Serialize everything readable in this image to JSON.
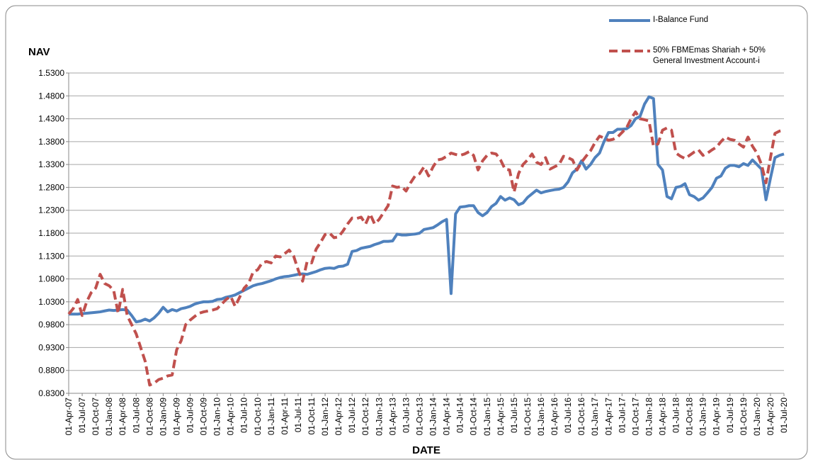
{
  "chart_data": {
    "type": "line",
    "y_label": "NAV",
    "x_label": "DATE",
    "ylim": [
      0.83,
      1.53
    ],
    "yticks": [
      {
        "value": 0.83,
        "label": "0.8300"
      },
      {
        "value": 0.88,
        "label": "0.8800"
      },
      {
        "value": 0.93,
        "label": "0.9300"
      },
      {
        "value": 0.98,
        "label": "0.9800"
      },
      {
        "value": 1.03,
        "label": "1.0300"
      },
      {
        "value": 1.08,
        "label": "1.0800"
      },
      {
        "value": 1.13,
        "label": "1.1300"
      },
      {
        "value": 1.18,
        "label": "1.1800"
      },
      {
        "value": 1.23,
        "label": "1.2300"
      },
      {
        "value": 1.28,
        "label": "1.2800"
      },
      {
        "value": 1.33,
        "label": "1.3300"
      },
      {
        "value": 1.38,
        "label": "1.3800"
      },
      {
        "value": 1.43,
        "label": "1.4300"
      },
      {
        "value": 1.48,
        "label": "1.4800"
      },
      {
        "value": 1.53,
        "label": "1.5300"
      }
    ],
    "grid": true,
    "legend_position": "top-right",
    "categories": [
      "01-Apr-07",
      null,
      null,
      "01-Jul-07",
      null,
      null,
      "01-Oct-07",
      null,
      null,
      "01-Jan-08",
      null,
      null,
      "01-Apr-08",
      null,
      null,
      "01-Jul-08",
      null,
      null,
      "01-Oct-08",
      null,
      null,
      "01-Jan-09",
      null,
      null,
      "01-Apr-09",
      null,
      null,
      "01-Jul-09",
      null,
      null,
      "01-Oct-09",
      null,
      null,
      "01-Jan-10",
      null,
      null,
      "01-Apr-10",
      null,
      null,
      "01-Jul-10",
      null,
      null,
      "01-Oct-10",
      null,
      null,
      "01-Jan-11",
      null,
      null,
      "01-Apr-11",
      null,
      null,
      "01-Jul-11",
      null,
      null,
      "01-Oct-11",
      null,
      null,
      "01-Jan-12",
      null,
      null,
      "01-Apr-12",
      null,
      null,
      "01-Jul-12",
      null,
      null,
      "01-Oct-12",
      null,
      null,
      "01-Jan-13",
      null,
      null,
      "01-Apr-13",
      null,
      null,
      "01-Jul-13",
      null,
      null,
      "01-Oct-13",
      null,
      null,
      "01-Jan-14",
      null,
      null,
      "01-Apr-14",
      null,
      null,
      "01-Jul-14",
      null,
      null,
      "01-Oct-14",
      null,
      null,
      "01-Jan-15",
      null,
      null,
      "01-Apr-15",
      null,
      null,
      "01-Jul-15",
      null,
      null,
      "01-Oct-15",
      null,
      null,
      "01-Jan-16",
      null,
      null,
      "01-Apr-16",
      null,
      null,
      "01-Jul-16",
      null,
      null,
      "01-Oct-16",
      null,
      null,
      "01-Jan-17",
      null,
      null,
      "01-Apr-17",
      null,
      null,
      "01-Jul-17",
      null,
      null,
      "01-Oct-17",
      null,
      null,
      "01-Jan-18",
      null,
      null,
      "01-Apr-18",
      null,
      null,
      "01-Jul-18",
      null,
      null,
      "01-Oct-18",
      null,
      null,
      "01-Jan-19",
      null,
      null,
      "01-Apr-19",
      null,
      null,
      "01-Jul-19",
      null,
      null,
      "01-Oct-19",
      null,
      null,
      "01-Jan-20",
      null,
      null,
      "01-Apr-20",
      null,
      null,
      "01-Jul-20"
    ],
    "series": [
      {
        "name": "I-Balance Fund",
        "color": "#4f81bd",
        "dashed": false,
        "values": [
          1.003,
          1.003,
          1.003,
          1.004,
          1.005,
          1.006,
          1.007,
          1.008,
          1.01,
          1.012,
          1.011,
          1.012,
          1.013,
          1.012,
          1.0,
          0.986,
          0.988,
          0.992,
          0.988,
          0.995,
          1.005,
          1.018,
          1.008,
          1.013,
          1.01,
          1.015,
          1.017,
          1.02,
          1.025,
          1.028,
          1.03,
          1.03,
          1.031,
          1.035,
          1.036,
          1.04,
          1.042,
          1.045,
          1.05,
          1.055,
          1.06,
          1.065,
          1.068,
          1.07,
          1.073,
          1.076,
          1.08,
          1.083,
          1.085,
          1.086,
          1.088,
          1.09,
          1.091,
          1.09,
          1.093,
          1.096,
          1.1,
          1.103,
          1.104,
          1.103,
          1.107,
          1.108,
          1.112,
          1.14,
          1.142,
          1.147,
          1.149,
          1.151,
          1.155,
          1.158,
          1.162,
          1.162,
          1.163,
          1.178,
          1.176,
          1.176,
          1.177,
          1.178,
          1.18,
          1.188,
          1.19,
          1.192,
          1.198,
          1.205,
          1.21,
          1.048,
          1.222,
          1.237,
          1.238,
          1.24,
          1.24,
          1.225,
          1.218,
          1.225,
          1.238,
          1.245,
          1.26,
          1.252,
          1.257,
          1.253,
          1.242,
          1.246,
          1.258,
          1.266,
          1.274,
          1.268,
          1.271,
          1.273,
          1.275,
          1.276,
          1.28,
          1.292,
          1.312,
          1.32,
          1.338,
          1.32,
          1.33,
          1.345,
          1.355,
          1.38,
          1.4,
          1.4,
          1.407,
          1.407,
          1.408,
          1.415,
          1.43,
          1.435,
          1.462,
          1.478,
          1.474,
          1.33,
          1.318,
          1.26,
          1.255,
          1.28,
          1.282,
          1.288,
          1.264,
          1.26,
          1.252,
          1.257,
          1.268,
          1.28,
          1.3,
          1.305,
          1.322,
          1.328,
          1.328,
          1.325,
          1.332,
          1.328,
          1.34,
          1.33,
          1.32,
          1.253,
          1.3,
          1.345,
          1.35,
          1.353
        ]
      },
      {
        "name": "50% FBMEmas Shariah + 50% General Investment Account-i",
        "color": "#c0504d",
        "dashed": true,
        "values": [
          1.003,
          1.015,
          1.035,
          1.0,
          1.03,
          1.05,
          1.06,
          1.09,
          1.07,
          1.065,
          1.055,
          1.005,
          1.057,
          1.0,
          0.98,
          0.96,
          0.93,
          0.9,
          0.848,
          0.852,
          0.86,
          0.863,
          0.868,
          0.87,
          0.925,
          0.945,
          0.98,
          0.99,
          0.998,
          1.005,
          1.008,
          1.01,
          1.012,
          1.015,
          1.025,
          1.035,
          1.042,
          1.02,
          1.04,
          1.06,
          1.07,
          1.095,
          1.1,
          1.115,
          1.118,
          1.115,
          1.13,
          1.128,
          1.135,
          1.143,
          1.13,
          1.1,
          1.075,
          1.118,
          1.115,
          1.145,
          1.16,
          1.177,
          1.18,
          1.17,
          1.172,
          1.185,
          1.2,
          1.213,
          1.212,
          1.215,
          1.2,
          1.222,
          1.2,
          1.21,
          1.225,
          1.24,
          1.283,
          1.28,
          1.282,
          1.272,
          1.29,
          1.305,
          1.31,
          1.325,
          1.305,
          1.325,
          1.34,
          1.342,
          1.348,
          1.355,
          1.352,
          1.35,
          1.353,
          1.358,
          1.35,
          1.318,
          1.338,
          1.35,
          1.355,
          1.353,
          1.34,
          1.32,
          1.318,
          1.27,
          1.31,
          1.33,
          1.34,
          1.353,
          1.335,
          1.33,
          1.345,
          1.32,
          1.325,
          1.33,
          1.348,
          1.345,
          1.34,
          1.318,
          1.335,
          1.348,
          1.36,
          1.378,
          1.392,
          1.388,
          1.383,
          1.385,
          1.39,
          1.4,
          1.41,
          1.43,
          1.445,
          1.43,
          1.428,
          1.425,
          1.37,
          1.375,
          1.405,
          1.41,
          1.405,
          1.355,
          1.348,
          1.343,
          1.35,
          1.357,
          1.362,
          1.35,
          1.355,
          1.362,
          1.368,
          1.38,
          1.39,
          1.385,
          1.383,
          1.375,
          1.368,
          1.39,
          1.37,
          1.355,
          1.33,
          1.29,
          1.345,
          1.398,
          1.403,
          1.405
        ]
      }
    ]
  }
}
